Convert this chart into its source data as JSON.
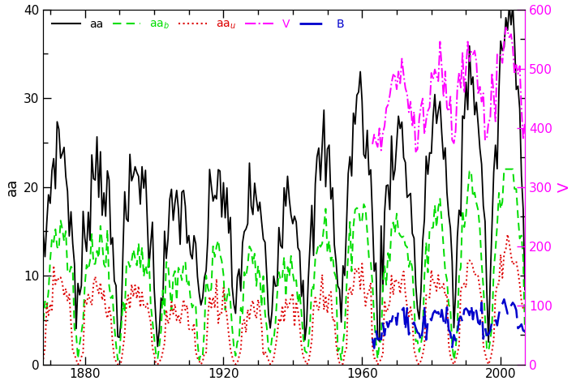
{
  "ylabel_left": "aa",
  "ylabel_right": "V",
  "xlim": [
    1868,
    2007
  ],
  "ylim_left": [
    0,
    40
  ],
  "ylim_right": [
    0,
    600
  ],
  "x_ticks": [
    1880,
    1920,
    1960,
    2000
  ],
  "y_ticks_left": [
    0,
    10,
    20,
    30,
    40
  ],
  "y_ticks_right": [
    0,
    100,
    200,
    300,
    400,
    500,
    600
  ],
  "colors": {
    "aa": "#000000",
    "aa_b": "#00dd00",
    "aa_u": "#dd0000",
    "V": "#ff00ff",
    "B": "#0000cc"
  },
  "background_color": "#ffffff"
}
